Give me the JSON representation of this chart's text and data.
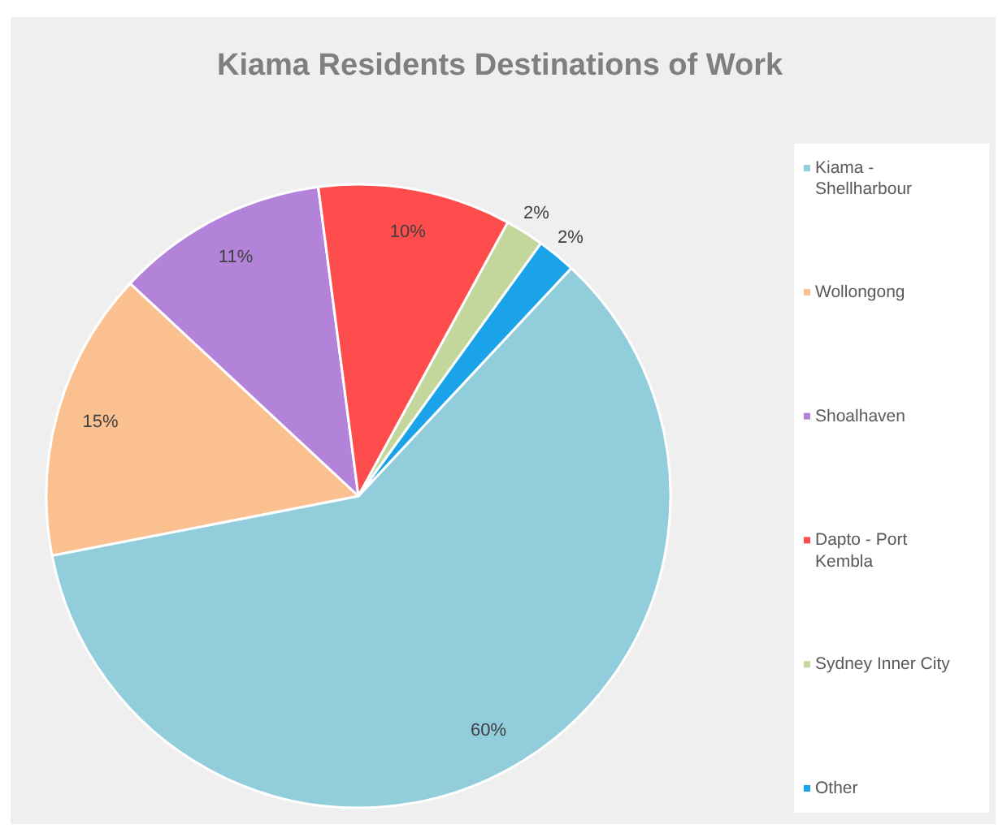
{
  "chart_data": {
    "type": "pie",
    "title": "Kiama Residents Destinations of Work",
    "categories": [
      "Kiama - Shellharbour",
      "Wollongong",
      "Shoalhaven",
      "Dapto - Port Kembla",
      "Sydney Inner City",
      "Other"
    ],
    "values": [
      60,
      15,
      11,
      10,
      2,
      2
    ],
    "value_labels": [
      "60%",
      "15%",
      "11%",
      "10%",
      "2%",
      "2%"
    ],
    "colors": [
      "#92cddc",
      "#fac090",
      "#b383d9",
      "#ff4d4d",
      "#c3d69b",
      "#1aa3e8"
    ],
    "legend": "right"
  }
}
